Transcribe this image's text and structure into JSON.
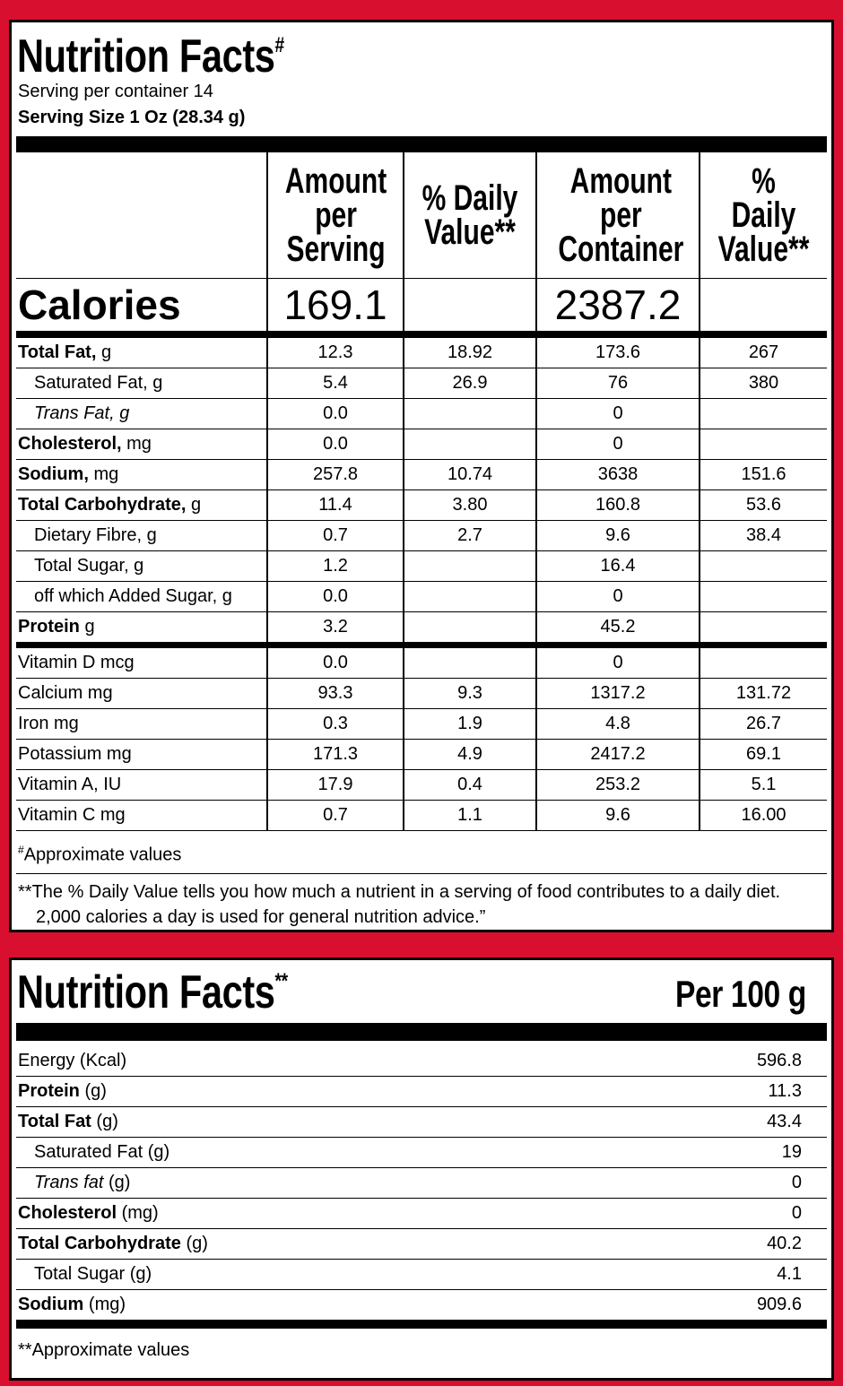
{
  "panel1": {
    "title": "Nutrition Facts",
    "title_mark": "#",
    "serving_per_container": "Serving per container 14",
    "serving_size": "Serving Size 1 Oz (28.34 g)",
    "headers": [
      "Amount per Serving",
      "% Daily Value**",
      "Amount per Container",
      "% Daily Value**"
    ],
    "calories": {
      "label": "Calories",
      "values": [
        "169.1",
        null,
        "2387.2",
        null
      ]
    },
    "rows": [
      {
        "label": "Total Fat,",
        "unit": "g",
        "values": [
          "12.3",
          "18.92",
          "173.6",
          "267"
        ]
      },
      {
        "label": "Saturated Fat, g",
        "values": [
          "5.4",
          "26.9",
          "76",
          "380"
        ]
      },
      {
        "label": "Trans Fat, g",
        "values": [
          "0.0",
          null,
          "0",
          null
        ]
      },
      {
        "label": "Cholesterol,",
        "unit": "mg",
        "values": [
          "0.0",
          null,
          "0",
          null
        ]
      },
      {
        "label": "Sodium,",
        "unit": "mg",
        "values": [
          "257.8",
          "10.74",
          "3638",
          "151.6"
        ]
      },
      {
        "label": "Total Carbohydrate,",
        "unit": "g",
        "values": [
          "11.4",
          "3.80",
          "160.8",
          "53.6"
        ]
      },
      {
        "label": "Dietary Fibre, g",
        "values": [
          "0.7",
          "2.7",
          "9.6",
          "38.4"
        ]
      },
      {
        "label": "Total Sugar, g",
        "values": [
          "1.2",
          null,
          "16.4",
          null
        ]
      },
      {
        "label": "off which Added Sugar, g",
        "values": [
          "0.0",
          null,
          "0",
          null
        ]
      },
      {
        "label": "Protein",
        "unit": "g",
        "values": [
          "3.2",
          null,
          "45.2",
          null
        ]
      },
      {
        "label": "Vitamin D mcg",
        "values": [
          "0.0",
          null,
          "0",
          null
        ]
      },
      {
        "label": "Calcium mg",
        "values": [
          "93.3",
          "9.3",
          "1317.2",
          "131.72"
        ]
      },
      {
        "label": "Iron mg",
        "values": [
          "0.3",
          "1.9",
          "4.8",
          "26.7"
        ]
      },
      {
        "label": "Potassium mg",
        "values": [
          "171.3",
          "4.9",
          "2417.2",
          "69.1"
        ]
      },
      {
        "label": "Vitamin A, IU",
        "values": [
          "17.9",
          "0.4",
          "253.2",
          "5.1"
        ]
      },
      {
        "label": "Vitamin C mg",
        "values": [
          "0.7",
          "1.1",
          "9.6",
          "16.00"
        ]
      }
    ],
    "footnote_mark": "#",
    "footnote": "Approximate values",
    "note": "**The % Daily Value tells you how much a nutrient in a serving of food contributes to a daily diet. 2,000 calories a day is used for general nutrition advice.”"
  },
  "panel2": {
    "title": "Nutrition Facts",
    "title_mark": "**",
    "column": "Per 100 g",
    "rows": [
      {
        "label": "Energy (Kcal)",
        "value": "596.8"
      },
      {
        "label": "Protein",
        "unit": "(g)",
        "value": "11.3"
      },
      {
        "label": "Total Fat",
        "unit": "(g)",
        "value": "43.4"
      },
      {
        "label": "Saturated Fat (g)",
        "value": "19"
      },
      {
        "label": "Trans fat",
        "unit": "(g)",
        "value": "0"
      },
      {
        "label": "Cholesterol",
        "unit": "(mg)",
        "value": "0"
      },
      {
        "label": "Total Carbohydrate",
        "unit": "(g)",
        "value": "40.2"
      },
      {
        "label": "Total Sugar (g)",
        "value": "4.1"
      },
      {
        "label": "Sodium",
        "unit": "(mg)",
        "value": "909.6"
      }
    ],
    "footnote": "**Approximate values"
  }
}
